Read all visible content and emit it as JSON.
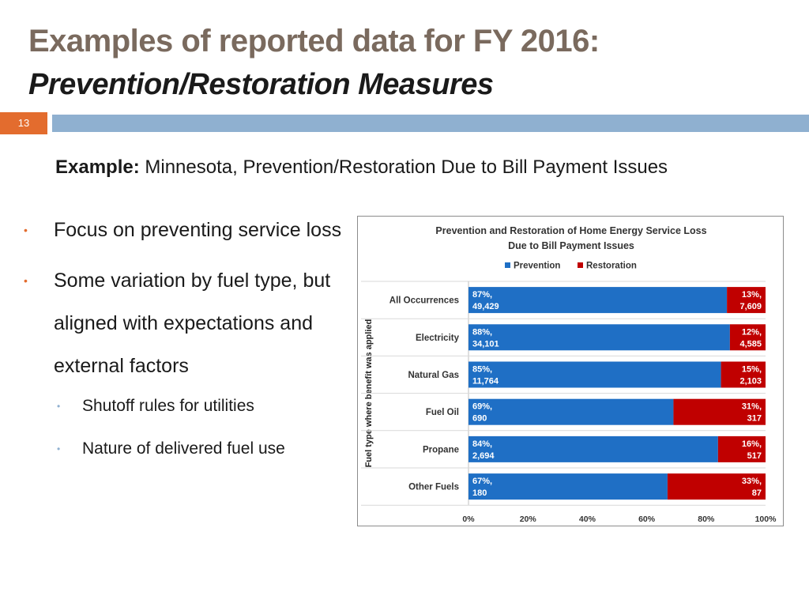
{
  "slide": {
    "title_line1": "Examples of reported data for FY 2016:",
    "title_line2": "Prevention/Restoration Measures",
    "slide_number": "13",
    "example_label": "Example:",
    "example_text": " Minnesota, Prevention/Restoration Due to Bill Payment Issues",
    "bullets": [
      {
        "text": "Focus on preventing service loss"
      },
      {
        "text": "Some variation by fuel type, but aligned with expectations and external factors"
      }
    ],
    "sub_bullets": [
      {
        "text": "Shutoff rules for utilities"
      },
      {
        "text": "Nature of delivered fuel use"
      }
    ],
    "colors": {
      "accent_orange": "#e36c2e",
      "band_blue": "#8fb0d0",
      "title_brown": "#7a6a5e"
    }
  },
  "chart_data": {
    "type": "bar",
    "orientation": "horizontal-stacked-percent",
    "title": "Prevention and Restoration of Home Energy Service Loss Due to Bill Payment Issues",
    "title_lines": [
      "Prevention and Restoration of Home Energy Service Loss",
      "Due to Bill Payment Issues"
    ],
    "ylabel": "Fuel type where benefit was applied",
    "xlabel": "",
    "xlim": [
      0,
      100
    ],
    "xticks": [
      "0%",
      "20%",
      "40%",
      "60%",
      "80%",
      "100%"
    ],
    "legend_position": "top",
    "categories": [
      "All Occurrences",
      "Electricity",
      "Natural Gas",
      "Fuel Oil",
      "Propane",
      "Other Fuels"
    ],
    "series": [
      {
        "name": "Prevention",
        "color": "#1f6fc5",
        "values": [
          87,
          88,
          85,
          69,
          84,
          67
        ],
        "counts": [
          "49,429",
          "34,101",
          "11,764",
          "690",
          "2,694",
          "180"
        ],
        "labels": [
          [
            "87%,",
            "49,429"
          ],
          [
            "88%,",
            "34,101"
          ],
          [
            "85%,",
            "11,764"
          ],
          [
            "69%,",
            "690"
          ],
          [
            "84%,",
            "2,694"
          ],
          [
            "67%,",
            "180"
          ]
        ]
      },
      {
        "name": "Restoration",
        "color": "#c00000",
        "values": [
          13,
          12,
          15,
          31,
          16,
          33
        ],
        "counts": [
          "7,609",
          "4,585",
          "2,103",
          "317",
          "517",
          "87"
        ],
        "labels": [
          [
            "13%,",
            "7,609"
          ],
          [
            "12%,",
            "4,585"
          ],
          [
            "15%,",
            "2,103"
          ],
          [
            "31%,",
            "317"
          ],
          [
            "16%,",
            "517"
          ],
          [
            "33%,",
            "87"
          ]
        ]
      }
    ]
  }
}
